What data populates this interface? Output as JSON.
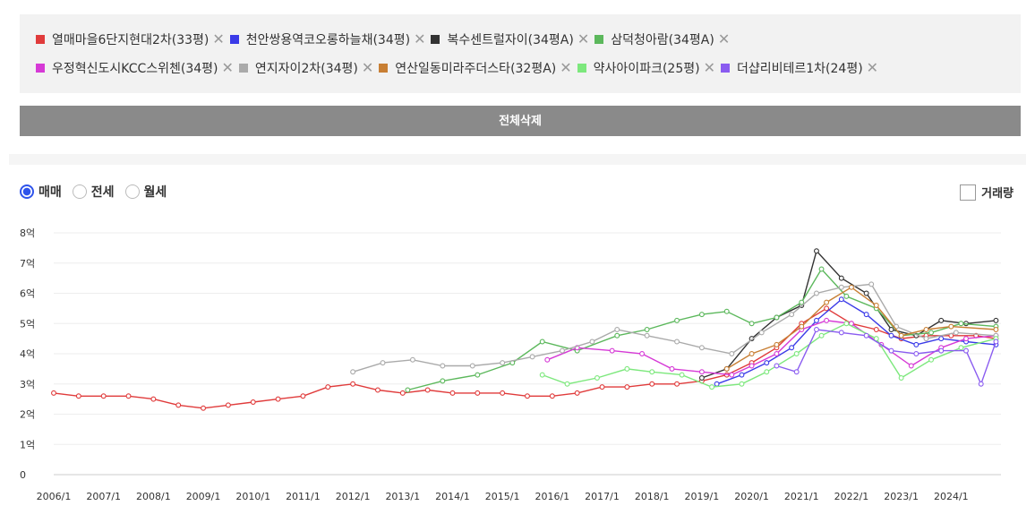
{
  "legend": {
    "remove_symbol": "✕",
    "rows": [
      [
        {
          "label": "열매마을6단지현대2차(33평)",
          "color": "#e03b3b"
        },
        {
          "label": "천안쌍용역코오롱하늘채(34평)",
          "color": "#3b3be8"
        },
        {
          "label": "복수센트럴자이(34평A)",
          "color": "#333333"
        },
        {
          "label": "삼덕청아람(34평A)",
          "color": "#5cb85c"
        }
      ],
      [
        {
          "label": "우정혁신도시KCC스위첸(34평)",
          "color": "#d63ad6"
        },
        {
          "label": "연지자이2차(34평)",
          "color": "#aaaaaa"
        },
        {
          "label": "연산일동미라주더스타(32평A)",
          "color": "#c87f34"
        },
        {
          "label": "약사아이파크(25평)",
          "color": "#7de87d"
        },
        {
          "label": "더샵리비테르1차(24평)",
          "color": "#8a5cf0"
        }
      ]
    ]
  },
  "clear_all_label": "전체삭제",
  "radios": [
    {
      "label": "매매",
      "selected": true
    },
    {
      "label": "전세",
      "selected": false
    },
    {
      "label": "월세",
      "selected": false
    }
  ],
  "volume_label": "거래량",
  "chart_data": {
    "type": "line",
    "y_ticks": [
      "0",
      "1억",
      "2억",
      "3억",
      "4억",
      "5억",
      "6억",
      "7억",
      "8억"
    ],
    "ylim": [
      0,
      8
    ],
    "x_ticks": [
      "2006/1",
      "2007/1",
      "2008/1",
      "2009/1",
      "2010/1",
      "2011/1",
      "2012/1",
      "2013/1",
      "2014/1",
      "2015/1",
      "2016/1",
      "2017/1",
      "2018/1",
      "2019/1",
      "2020/1",
      "2021/1",
      "2022/1",
      "2023/1",
      "2024/1"
    ],
    "xlim": [
      2006.0,
      2025.0
    ],
    "grid": true,
    "series": [
      {
        "name": "열매마을6단지현대2차(33평)",
        "color": "#e03b3b",
        "points": [
          [
            2006.0,
            2.7
          ],
          [
            2006.5,
            2.6
          ],
          [
            2007.0,
            2.6
          ],
          [
            2007.5,
            2.6
          ],
          [
            2008.0,
            2.5
          ],
          [
            2008.5,
            2.3
          ],
          [
            2009.0,
            2.2
          ],
          [
            2009.5,
            2.3
          ],
          [
            2010.0,
            2.4
          ],
          [
            2010.5,
            2.5
          ],
          [
            2011.0,
            2.6
          ],
          [
            2011.5,
            2.9
          ],
          [
            2012.0,
            3.0
          ],
          [
            2012.5,
            2.8
          ],
          [
            2013.0,
            2.7
          ],
          [
            2013.5,
            2.8
          ],
          [
            2014.0,
            2.7
          ],
          [
            2014.5,
            2.7
          ],
          [
            2015.0,
            2.7
          ],
          [
            2015.5,
            2.6
          ],
          [
            2016.0,
            2.6
          ],
          [
            2016.5,
            2.7
          ],
          [
            2017.0,
            2.9
          ],
          [
            2017.5,
            2.9
          ],
          [
            2018.0,
            3.0
          ],
          [
            2018.5,
            3.0
          ],
          [
            2019.0,
            3.1
          ],
          [
            2019.5,
            3.3
          ],
          [
            2020.0,
            3.7
          ],
          [
            2020.5,
            4.2
          ],
          [
            2021.0,
            5.0
          ],
          [
            2021.5,
            5.5
          ],
          [
            2022.0,
            5.0
          ],
          [
            2022.5,
            4.8
          ],
          [
            2023.0,
            4.5
          ],
          [
            2023.5,
            4.6
          ],
          [
            2024.0,
            4.6
          ],
          [
            2024.5,
            4.6
          ],
          [
            2024.9,
            4.5
          ]
        ]
      },
      {
        "name": "천안쌍용역코오롱하늘채(34평)",
        "color": "#3b3be8",
        "points": [
          [
            2019.3,
            3.0
          ],
          [
            2019.8,
            3.3
          ],
          [
            2020.3,
            3.7
          ],
          [
            2020.8,
            4.2
          ],
          [
            2021.3,
            5.1
          ],
          [
            2021.8,
            5.8
          ],
          [
            2022.3,
            5.3
          ],
          [
            2022.8,
            4.6
          ],
          [
            2023.3,
            4.3
          ],
          [
            2023.8,
            4.5
          ],
          [
            2024.3,
            4.4
          ],
          [
            2024.9,
            4.3
          ]
        ]
      },
      {
        "name": "복수센트럴자이(34평A)",
        "color": "#333333",
        "points": [
          [
            2019.0,
            3.2
          ],
          [
            2019.5,
            3.5
          ],
          [
            2020.0,
            4.5
          ],
          [
            2020.5,
            5.2
          ],
          [
            2021.0,
            5.6
          ],
          [
            2021.3,
            7.4
          ],
          [
            2021.8,
            6.5
          ],
          [
            2022.3,
            6.0
          ],
          [
            2022.8,
            4.8
          ],
          [
            2023.3,
            4.6
          ],
          [
            2023.8,
            5.1
          ],
          [
            2024.3,
            5.0
          ],
          [
            2024.9,
            5.1
          ]
        ]
      },
      {
        "name": "삼덕청아람(34평A)",
        "color": "#5cb85c",
        "points": [
          [
            2013.1,
            2.8
          ],
          [
            2013.8,
            3.1
          ],
          [
            2014.5,
            3.3
          ],
          [
            2015.2,
            3.7
          ],
          [
            2015.8,
            4.4
          ],
          [
            2016.5,
            4.1
          ],
          [
            2017.3,
            4.6
          ],
          [
            2017.9,
            4.8
          ],
          [
            2018.5,
            5.1
          ],
          [
            2019.0,
            5.3
          ],
          [
            2019.5,
            5.4
          ],
          [
            2020.0,
            5.0
          ],
          [
            2020.5,
            5.2
          ],
          [
            2021.0,
            5.7
          ],
          [
            2021.4,
            6.8
          ],
          [
            2021.9,
            5.9
          ],
          [
            2022.5,
            5.5
          ],
          [
            2023.0,
            4.6
          ],
          [
            2023.6,
            4.7
          ],
          [
            2024.2,
            5.0
          ],
          [
            2024.9,
            4.9
          ]
        ]
      },
      {
        "name": "우정혁신도시KCC스위첸(34평)",
        "color": "#d63ad6",
        "points": [
          [
            2015.9,
            3.8
          ],
          [
            2016.5,
            4.2
          ],
          [
            2017.2,
            4.1
          ],
          [
            2017.8,
            4.0
          ],
          [
            2018.4,
            3.5
          ],
          [
            2019.0,
            3.4
          ],
          [
            2019.6,
            3.3
          ],
          [
            2020.0,
            3.6
          ],
          [
            2020.5,
            4.0
          ],
          [
            2021.0,
            4.8
          ],
          [
            2021.5,
            5.1
          ],
          [
            2022.0,
            5.0
          ],
          [
            2022.6,
            4.3
          ],
          [
            2023.2,
            3.6
          ],
          [
            2023.8,
            4.2
          ],
          [
            2024.3,
            4.5
          ],
          [
            2024.9,
            4.6
          ]
        ]
      },
      {
        "name": "연지자이2차(34평)",
        "color": "#aaaaaa",
        "points": [
          [
            2012.0,
            3.4
          ],
          [
            2012.6,
            3.7
          ],
          [
            2013.2,
            3.8
          ],
          [
            2013.8,
            3.6
          ],
          [
            2014.4,
            3.6
          ],
          [
            2015.0,
            3.7
          ],
          [
            2015.6,
            3.9
          ],
          [
            2016.2,
            4.1
          ],
          [
            2016.8,
            4.4
          ],
          [
            2017.3,
            4.8
          ],
          [
            2017.9,
            4.6
          ],
          [
            2018.5,
            4.4
          ],
          [
            2019.0,
            4.2
          ],
          [
            2019.6,
            4.0
          ],
          [
            2020.2,
            4.7
          ],
          [
            2020.8,
            5.3
          ],
          [
            2021.3,
            6.0
          ],
          [
            2021.8,
            6.2
          ],
          [
            2022.4,
            6.3
          ],
          [
            2022.9,
            4.9
          ],
          [
            2023.5,
            4.5
          ],
          [
            2024.1,
            4.7
          ],
          [
            2024.9,
            4.6
          ]
        ]
      },
      {
        "name": "연산일동미라주더스타(32평A)",
        "color": "#c87f34",
        "points": [
          [
            2019.5,
            3.5
          ],
          [
            2020.0,
            4.0
          ],
          [
            2020.5,
            4.3
          ],
          [
            2021.0,
            4.9
          ],
          [
            2021.5,
            5.7
          ],
          [
            2022.0,
            6.2
          ],
          [
            2022.5,
            5.6
          ],
          [
            2023.0,
            4.6
          ],
          [
            2023.5,
            4.8
          ],
          [
            2024.0,
            4.9
          ],
          [
            2024.9,
            4.8
          ]
        ]
      },
      {
        "name": "약사아이파크(25평)",
        "color": "#7de87d",
        "points": [
          [
            2015.8,
            3.3
          ],
          [
            2016.3,
            3.0
          ],
          [
            2016.9,
            3.2
          ],
          [
            2017.5,
            3.5
          ],
          [
            2018.0,
            3.4
          ],
          [
            2018.6,
            3.3
          ],
          [
            2019.2,
            2.9
          ],
          [
            2019.8,
            3.0
          ],
          [
            2020.3,
            3.4
          ],
          [
            2020.9,
            4.0
          ],
          [
            2021.4,
            4.6
          ],
          [
            2021.9,
            5.0
          ],
          [
            2022.5,
            4.5
          ],
          [
            2023.0,
            3.2
          ],
          [
            2023.6,
            3.8
          ],
          [
            2024.2,
            4.2
          ],
          [
            2024.9,
            4.5
          ]
        ]
      },
      {
        "name": "더샵리비테르1차(24평)",
        "color": "#8a5cf0",
        "points": [
          [
            2020.5,
            3.6
          ],
          [
            2020.9,
            3.4
          ],
          [
            2021.3,
            4.8
          ],
          [
            2021.8,
            4.7
          ],
          [
            2022.3,
            4.6
          ],
          [
            2022.8,
            4.1
          ],
          [
            2023.3,
            4.0
          ],
          [
            2023.8,
            4.1
          ],
          [
            2024.3,
            4.1
          ],
          [
            2024.6,
            3.0
          ],
          [
            2024.9,
            4.4
          ]
        ]
      }
    ]
  }
}
